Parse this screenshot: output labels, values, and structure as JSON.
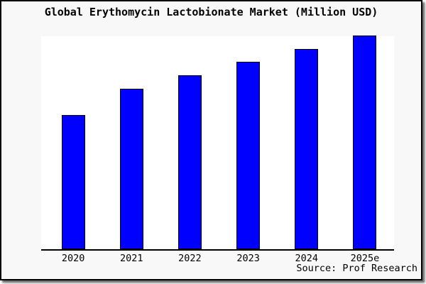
{
  "title": "Global Erythomycin Lactobionate Market (Million USD)",
  "source_note": "Source: Prof Research",
  "colors": {
    "bar_fill": "#0000ff",
    "bar_border": "#000000",
    "axis": "#000000",
    "frame_border": "#000000",
    "chart_background": "#f8f8f8",
    "plot_background": "#ffffff",
    "text": "#000000"
  },
  "chart_data": {
    "type": "bar",
    "title": "Global Erythomycin Lactobionate Market (Million USD)",
    "categories": [
      "2020",
      "2021",
      "2022",
      "2023",
      "2024",
      "2025e"
    ],
    "values": [
      62.8,
      75.1,
      81.4,
      87.7,
      93.7,
      100
    ],
    "value_note": "relative units; tallest bar (2025e) = 100, no y-axis tick labels shown in image",
    "xlabel": "",
    "ylabel": "",
    "ylim": [
      0,
      104
    ],
    "grid": false,
    "legend": false,
    "y_axis_visible": false
  }
}
